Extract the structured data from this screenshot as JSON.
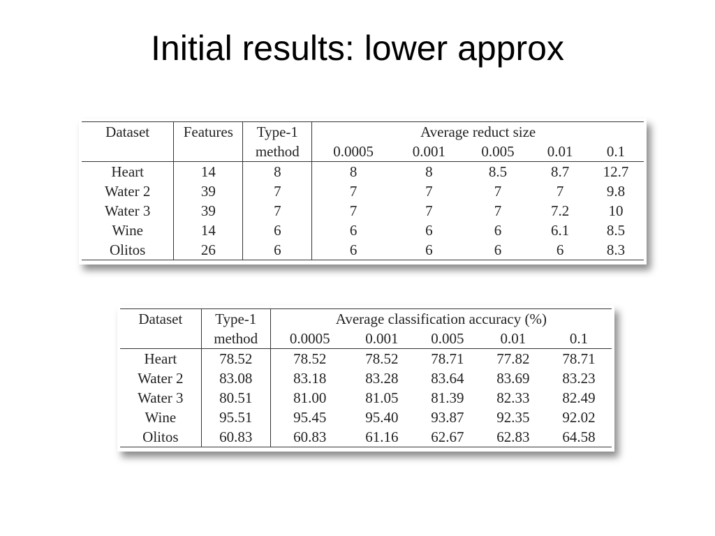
{
  "title": "Initial results: lower approx",
  "tables": [
    {
      "headers": [
        "Dataset",
        "Features",
        "Type-1 method"
      ],
      "group": "Average reduct size",
      "subheaders": [
        "0.0005",
        "0.001",
        "0.005",
        "0.01",
        "0.1"
      ],
      "rows": [
        [
          "Heart",
          "14",
          "8",
          "8",
          "8",
          "8.5",
          "8.7",
          "12.7"
        ],
        [
          "Water 2",
          "39",
          "7",
          "7",
          "7",
          "7",
          "7",
          "9.8"
        ],
        [
          "Water 3",
          "39",
          "7",
          "7",
          "7",
          "7",
          "7.2",
          "10"
        ],
        [
          "Wine",
          "14",
          "6",
          "6",
          "6",
          "6",
          "6.1",
          "8.5"
        ],
        [
          "Olitos",
          "26",
          "6",
          "6",
          "6",
          "6",
          "6",
          "8.3"
        ]
      ]
    },
    {
      "headers": [
        "Dataset",
        "Type-1 method"
      ],
      "group": "Average classification accuracy (%)",
      "subheaders": [
        "0.0005",
        "0.001",
        "0.005",
        "0.01",
        "0.1"
      ],
      "rows": [
        [
          "Heart",
          "78.52",
          "78.52",
          "78.52",
          "78.71",
          "77.82",
          "78.71"
        ],
        [
          "Water 2",
          "83.08",
          "83.18",
          "83.28",
          "83.64",
          "83.69",
          "83.23"
        ],
        [
          "Water 3",
          "80.51",
          "81.00",
          "81.05",
          "81.39",
          "82.33",
          "82.49"
        ],
        [
          "Wine",
          "95.51",
          "95.45",
          "95.40",
          "93.87",
          "92.35",
          "92.02"
        ],
        [
          "Olitos",
          "60.83",
          "60.83",
          "61.16",
          "62.67",
          "62.83",
          "64.58"
        ]
      ]
    }
  ]
}
